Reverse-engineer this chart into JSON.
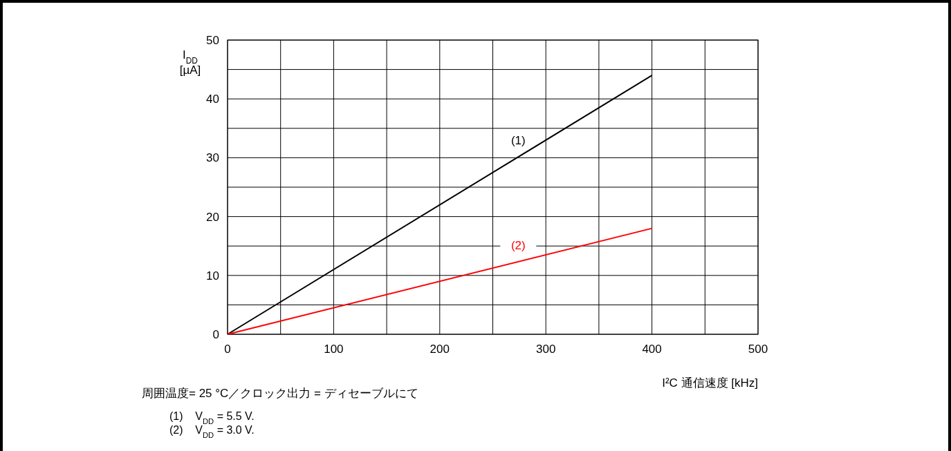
{
  "chart_data": {
    "type": "line",
    "xlabel": "I²C 通信速度 [kHz]",
    "ylabel": "I$_{DD}$ [µA]",
    "xlim": [
      0,
      500
    ],
    "ylim": [
      0,
      50
    ],
    "xticks": [
      0,
      {
        "value": 50,
        "label": null
      },
      100,
      {
        "value": 150,
        "label": null
      },
      200,
      {
        "value": 250,
        "label": null
      },
      300,
      {
        "value": 350,
        "label": null
      },
      400,
      {
        "value": 450,
        "label": null
      },
      500
    ],
    "yticks": [
      0,
      {
        "value": 5,
        "label": null
      },
      10,
      {
        "value": 15,
        "label": null
      },
      20,
      {
        "value": 25,
        "label": null
      },
      30,
      {
        "value": 35,
        "label": null
      },
      40,
      {
        "value": 45,
        "label": null
      },
      50
    ],
    "grid": true,
    "x": [
      0,
      400
    ],
    "series": [
      {
        "name": "(1)",
        "color": "#000000",
        "values": [
          0,
          44
        ]
      },
      {
        "name": "(2)",
        "color": "#ff0000",
        "values": [
          0,
          18
        ]
      }
    ],
    "annotations": [
      "周囲温度= 25 °C／クロック出力 = ディセーブルにて",
      "(1)    V$_{DD}$ = 5.5 V.",
      "(2)    V$_{DD}$ = 3.0 V."
    ]
  }
}
